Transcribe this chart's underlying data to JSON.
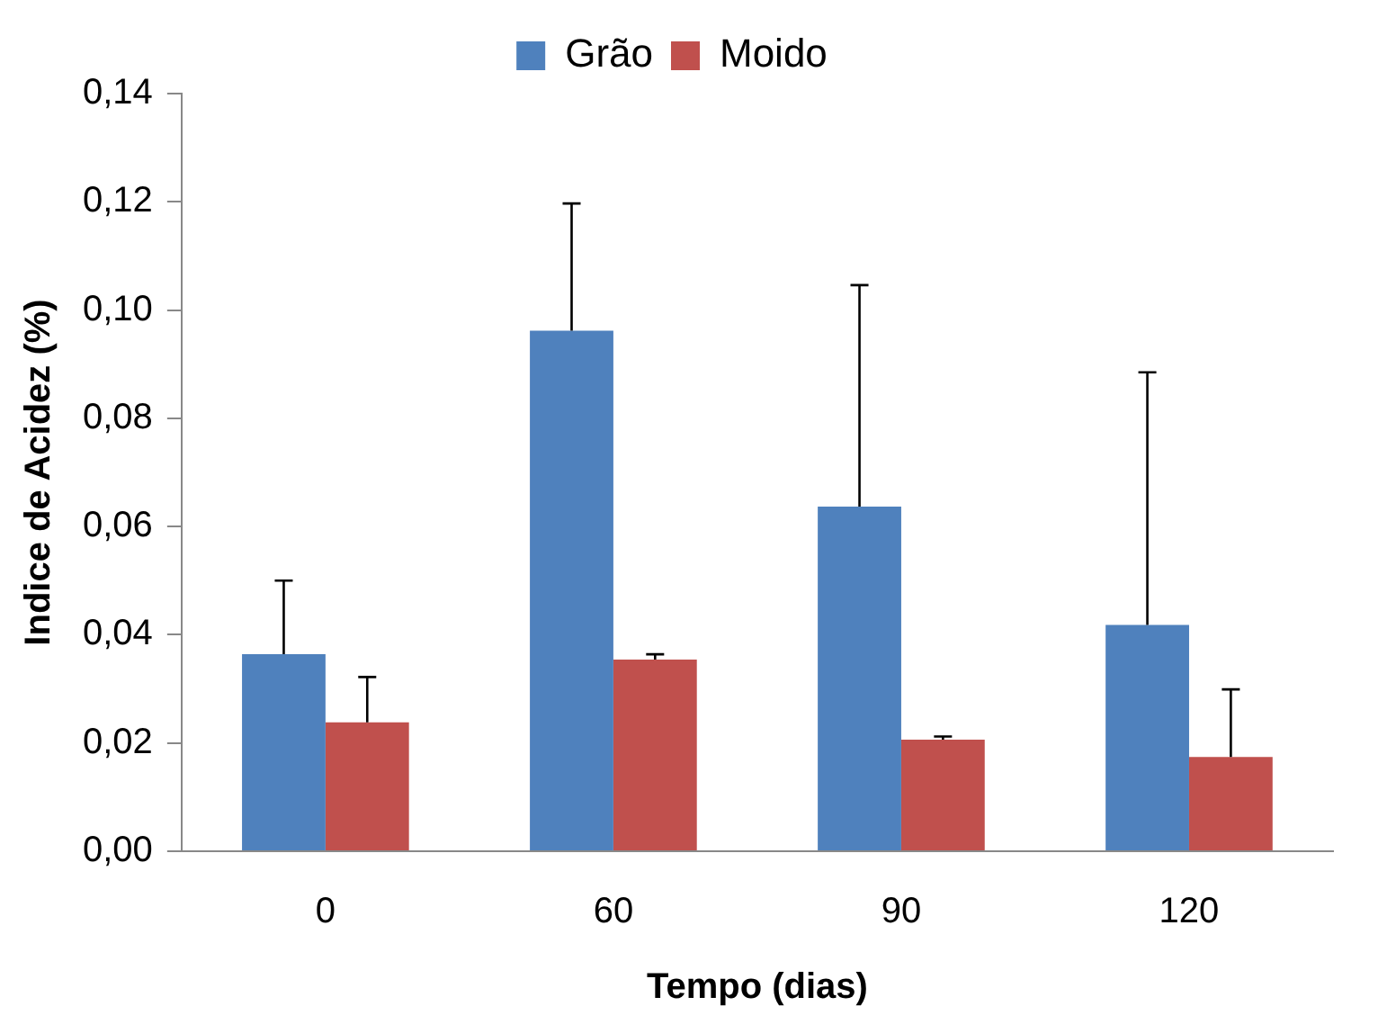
{
  "chart_data": {
    "type": "bar",
    "xlabel": "Tempo (dias)",
    "ylabel": "Indice de Acidez (%)",
    "categories": [
      "0",
      "60",
      "90",
      "120"
    ],
    "series": [
      {
        "name": "Grão",
        "color": "#4f81bd",
        "values": [
          0.0364,
          0.0962,
          0.0637,
          0.0418
        ],
        "errors": [
          [
            0.0364,
            0.05
          ],
          [
            0.0962,
            0.1197
          ],
          [
            0.0637,
            0.1046
          ],
          [
            0.0418,
            0.0885
          ]
        ]
      },
      {
        "name": "Moido",
        "color": "#c0504d",
        "values": [
          0.0238,
          0.0354,
          0.0206,
          0.0174
        ],
        "errors": [
          [
            0.0238,
            0.0322
          ],
          [
            0.0354,
            0.0364
          ],
          [
            0.0206,
            0.0212
          ],
          [
            0.0174,
            0.0299
          ]
        ]
      }
    ],
    "ylim": [
      0,
      0.14
    ],
    "yticks": [
      {
        "value": 0,
        "label": "0,00"
      },
      {
        "value": 0.02,
        "label": "0,02"
      },
      {
        "value": 0.04,
        "label": "0,04"
      },
      {
        "value": 0.06,
        "label": "0,06"
      },
      {
        "value": 0.08,
        "label": "0,08"
      },
      {
        "value": 0.1,
        "label": "0,10"
      },
      {
        "value": 0.12,
        "label": "0,12"
      },
      {
        "value": 0.14,
        "label": "0,14"
      }
    ],
    "grid": false,
    "legend": "top"
  }
}
